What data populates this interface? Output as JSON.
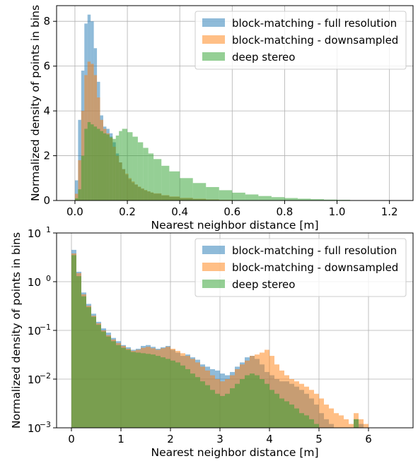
{
  "chart_data": [
    {
      "type": "histogram",
      "xlabel": "Nearest neighbor distance [m]",
      "ylabel": "Normalized density of points in bins",
      "xlim": [
        -0.07,
        1.29
      ],
      "ylim": [
        0,
        8.7
      ],
      "y_scale": "linear",
      "grid": true,
      "legend_position": "top-right",
      "x_ticks": [
        0.0,
        0.2,
        0.4,
        0.6,
        0.8,
        1.0,
        1.2
      ],
      "x_tick_labels": [
        "0.0",
        "0.2",
        "0.4",
        "0.6",
        "0.8",
        "1.0",
        "1.2"
      ],
      "y_ticks": [
        0,
        2,
        4,
        6,
        8
      ],
      "y_tick_labels": [
        "0",
        "2",
        "4",
        "6",
        "8"
      ],
      "series": [
        {
          "name": "block-matching - full resolution",
          "color": "#1f77b4",
          "x": [
            0.0,
            0.012,
            0.024,
            0.036,
            0.048,
            0.06,
            0.072,
            0.084,
            0.096,
            0.108,
            0.12,
            0.132,
            0.144,
            0.156,
            0.168,
            0.18,
            0.192,
            0.204,
            0.216,
            0.228,
            0.24,
            0.252,
            0.264,
            0.276,
            0.288,
            0.3,
            0.33,
            0.36,
            0.4,
            0.45,
            0.5,
            0.55,
            0.6
          ],
          "values": [
            0.9,
            3.6,
            5.8,
            7.9,
            8.3,
            8.0,
            6.8,
            5.3,
            3.8,
            3.3,
            3.2,
            3.0,
            2.6,
            2.1,
            1.7,
            1.4,
            1.15,
            0.95,
            0.8,
            0.7,
            0.6,
            0.52,
            0.45,
            0.4,
            0.35,
            0.3,
            0.22,
            0.16,
            0.1,
            0.06,
            0.04,
            0.02,
            0.01
          ]
        },
        {
          "name": "block-matching - downsampled",
          "color": "#ff7f0e",
          "x": [
            0.0,
            0.012,
            0.024,
            0.036,
            0.048,
            0.06,
            0.072,
            0.084,
            0.096,
            0.108,
            0.12,
            0.132,
            0.144,
            0.156,
            0.168,
            0.18,
            0.192,
            0.204,
            0.216,
            0.228,
            0.24,
            0.252,
            0.264,
            0.276,
            0.288,
            0.3,
            0.33,
            0.36,
            0.4,
            0.45,
            0.5,
            0.55,
            0.6
          ],
          "values": [
            0.3,
            1.8,
            4.0,
            5.6,
            6.2,
            6.1,
            5.6,
            4.6,
            3.6,
            3.2,
            3.0,
            2.8,
            2.4,
            2.0,
            1.7,
            1.4,
            1.2,
            1.0,
            0.85,
            0.72,
            0.62,
            0.54,
            0.47,
            0.41,
            0.36,
            0.32,
            0.24,
            0.18,
            0.12,
            0.08,
            0.05,
            0.03,
            0.01
          ]
        },
        {
          "name": "deep stereo",
          "color": "#2ca02c",
          "x": [
            0.0,
            0.012,
            0.024,
            0.036,
            0.048,
            0.06,
            0.072,
            0.084,
            0.096,
            0.108,
            0.12,
            0.132,
            0.144,
            0.156,
            0.168,
            0.18,
            0.2,
            0.22,
            0.24,
            0.26,
            0.28,
            0.3,
            0.33,
            0.36,
            0.4,
            0.45,
            0.5,
            0.55,
            0.6,
            0.65,
            0.7,
            0.75,
            0.8,
            0.85,
            0.9,
            0.95,
            1.0,
            1.05,
            1.1
          ],
          "values": [
            0.1,
            0.5,
            2.0,
            3.2,
            3.5,
            3.4,
            3.3,
            3.2,
            3.1,
            3.0,
            2.95,
            2.85,
            2.75,
            2.9,
            3.1,
            3.2,
            3.05,
            2.85,
            2.6,
            2.35,
            2.1,
            1.85,
            1.55,
            1.3,
            1.0,
            0.78,
            0.6,
            0.46,
            0.35,
            0.27,
            0.2,
            0.15,
            0.11,
            0.08,
            0.06,
            0.04,
            0.03,
            0.015,
            0.005
          ]
        }
      ]
    },
    {
      "type": "histogram",
      "xlabel": "Nearest neighbor distance [m]",
      "ylabel": "Normalized density of points in bins",
      "xlim": [
        -0.3,
        6.9
      ],
      "ylim": [
        0.001,
        10
      ],
      "y_scale": "log",
      "grid": true,
      "legend_position": "top-right",
      "x_ticks": [
        0,
        1,
        2,
        3,
        4,
        5,
        6
      ],
      "x_tick_labels": [
        "0",
        "1",
        "2",
        "3",
        "4",
        "5",
        "6"
      ],
      "y_ticks": [
        0.001,
        0.01,
        0.1,
        1,
        10
      ],
      "y_tick_labels": [
        [
          "10",
          "−3"
        ],
        [
          "10",
          "−2"
        ],
        [
          "10",
          "−1"
        ],
        [
          "10",
          "0"
        ],
        [
          "10",
          "1"
        ]
      ],
      "series": [
        {
          "name": "block-matching - full resolution",
          "color": "#1f77b4",
          "x": [
            0.0,
            0.1,
            0.2,
            0.3,
            0.4,
            0.5,
            0.6,
            0.7,
            0.8,
            0.9,
            1.0,
            1.1,
            1.2,
            1.3,
            1.4,
            1.5,
            1.6,
            1.7,
            1.8,
            1.9,
            2.0,
            2.1,
            2.2,
            2.3,
            2.4,
            2.5,
            2.6,
            2.7,
            2.8,
            2.9,
            3.0,
            3.1,
            3.2,
            3.3,
            3.4,
            3.5,
            3.6,
            3.7,
            3.8,
            3.9,
            4.0,
            4.1,
            4.2,
            4.3,
            4.4,
            4.5,
            4.6,
            4.7,
            4.8,
            4.9,
            5.0,
            5.1,
            5.2,
            5.3,
            5.4,
            5.5,
            5.6,
            5.7,
            5.8,
            5.9
          ],
          "values": [
            4.5,
            1.6,
            0.6,
            0.35,
            0.22,
            0.15,
            0.11,
            0.09,
            0.07,
            0.06,
            0.05,
            0.045,
            0.04,
            0.042,
            0.048,
            0.05,
            0.046,
            0.042,
            0.045,
            0.048,
            0.04,
            0.035,
            0.03,
            0.032,
            0.028,
            0.025,
            0.02,
            0.018,
            0.016,
            0.015,
            0.013,
            0.012,
            0.014,
            0.018,
            0.022,
            0.028,
            0.03,
            0.026,
            0.02,
            0.014,
            0.012,
            0.01,
            0.009,
            0.009,
            0.008,
            0.007,
            0.006,
            0.005,
            0.004,
            0.003,
            0.002,
            0.0015,
            0.0012,
            0.001,
            0.001,
            0.001,
            0.001,
            0.0015,
            0.0012,
            0.001
          ]
        },
        {
          "name": "block-matching - downsampled",
          "color": "#ff7f0e",
          "x": [
            0.0,
            0.1,
            0.2,
            0.3,
            0.4,
            0.5,
            0.6,
            0.7,
            0.8,
            0.9,
            1.0,
            1.1,
            1.2,
            1.3,
            1.4,
            1.5,
            1.6,
            1.7,
            1.8,
            1.9,
            2.0,
            2.1,
            2.2,
            2.3,
            2.4,
            2.5,
            2.6,
            2.7,
            2.8,
            2.9,
            3.0,
            3.1,
            3.2,
            3.3,
            3.4,
            3.5,
            3.6,
            3.7,
            3.8,
            3.9,
            4.0,
            4.1,
            4.2,
            4.3,
            4.4,
            4.5,
            4.6,
            4.7,
            4.8,
            4.9,
            5.0,
            5.1,
            5.2,
            5.3,
            5.4,
            5.5,
            5.6,
            5.7,
            5.8,
            5.9
          ],
          "values": [
            3.8,
            1.5,
            0.55,
            0.32,
            0.2,
            0.14,
            0.1,
            0.08,
            0.065,
            0.055,
            0.048,
            0.042,
            0.038,
            0.04,
            0.044,
            0.046,
            0.043,
            0.04,
            0.043,
            0.046,
            0.042,
            0.038,
            0.034,
            0.03,
            0.026,
            0.022,
            0.018,
            0.015,
            0.012,
            0.01,
            0.009,
            0.01,
            0.012,
            0.016,
            0.02,
            0.024,
            0.03,
            0.032,
            0.035,
            0.04,
            0.03,
            0.02,
            0.015,
            0.012,
            0.01,
            0.009,
            0.008,
            0.007,
            0.006,
            0.005,
            0.004,
            0.003,
            0.0025,
            0.002,
            0.0018,
            0.0015,
            0.0012,
            0.002,
            0.0015,
            0.0012
          ]
        },
        {
          "name": "deep stereo",
          "color": "#2ca02c",
          "x": [
            0.0,
            0.1,
            0.2,
            0.3,
            0.4,
            0.5,
            0.6,
            0.7,
            0.8,
            0.9,
            1.0,
            1.1,
            1.2,
            1.3,
            1.4,
            1.5,
            1.6,
            1.7,
            1.8,
            1.9,
            2.0,
            2.1,
            2.2,
            2.3,
            2.4,
            2.5,
            2.6,
            2.7,
            2.8,
            2.9,
            3.0,
            3.1,
            3.2,
            3.3,
            3.4,
            3.5,
            3.6,
            3.7,
            3.8,
            3.9,
            4.0,
            4.1,
            4.2,
            4.3,
            4.4,
            4.5,
            4.6,
            4.7,
            4.8,
            4.9,
            5.0,
            5.1,
            5.2,
            5.3,
            5.4,
            5.5,
            5.6,
            5.7,
            5.8,
            5.9
          ],
          "values": [
            3.5,
            1.3,
            0.5,
            0.3,
            0.19,
            0.13,
            0.095,
            0.075,
            0.06,
            0.05,
            0.044,
            0.04,
            0.036,
            0.035,
            0.034,
            0.033,
            0.032,
            0.03,
            0.028,
            0.026,
            0.024,
            0.022,
            0.019,
            0.016,
            0.013,
            0.011,
            0.009,
            0.0075,
            0.006,
            0.005,
            0.0045,
            0.005,
            0.0065,
            0.008,
            0.01,
            0.012,
            0.013,
            0.012,
            0.01,
            0.008,
            0.006,
            0.005,
            0.004,
            0.0035,
            0.003,
            0.0025,
            0.002,
            0.0018,
            0.0015,
            0.0012,
            0.001,
            0.001,
            0.001,
            0.001,
            0.001,
            0.001,
            0.001,
            0.0015,
            0.001,
            0.001
          ]
        }
      ]
    }
  ]
}
